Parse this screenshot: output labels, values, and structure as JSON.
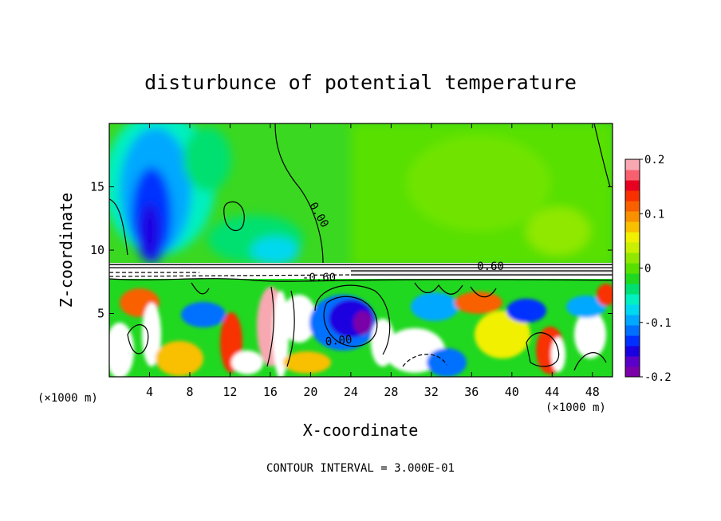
{
  "chart_data": {
    "type": "heatmap",
    "title": "disturbunce of potential temperature",
    "xlabel": "X-coordinate",
    "ylabel": "Z-coordinate",
    "x_unit": "(×1000 m)",
    "z_unit": "(×1000 m)",
    "xlim": [
      0,
      50
    ],
    "ylim": [
      0,
      20
    ],
    "x_ticks": [
      4,
      8,
      12,
      16,
      20,
      24,
      28,
      32,
      36,
      40,
      44,
      48
    ],
    "y_ticks": [
      5,
      10,
      15
    ],
    "colorbar": {
      "min": -0.2,
      "max": 0.2,
      "tick_values": [
        0.2,
        0.1,
        0,
        -0.1,
        -0.2
      ],
      "tick_labels": [
        "0.2",
        "0.1",
        "0",
        "-0.1",
        "-0.2"
      ],
      "colors": [
        "#7a00a8",
        "#5a00c8",
        "#1a00e0",
        "#0030ff",
        "#0070ff",
        "#00a8ff",
        "#00d8f0",
        "#00f0c0",
        "#00e070",
        "#20d820",
        "#58e000",
        "#90e800",
        "#c8f000",
        "#f0f000",
        "#f8c000",
        "#f89000",
        "#f86000",
        "#f83000",
        "#e80020",
        "#f86070",
        "#f8a8b0"
      ]
    },
    "contour_labels": [
      {
        "text": "0.00",
        "x": 21.0,
        "z": 13.2
      },
      {
        "text": "0.60",
        "x": 38.0,
        "z": 8.7
      },
      {
        "text": "-0.60",
        "x": 20.5,
        "z": 7.9
      },
      {
        "text": "0.00",
        "x": 23.0,
        "z": 3.0
      }
    ],
    "footer": "CONTOUR INTERVAL = 3.000E-01"
  }
}
